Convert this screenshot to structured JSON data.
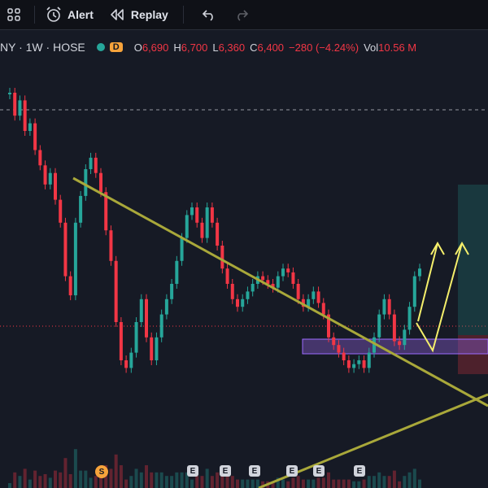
{
  "toolbar": {
    "alert_label": "Alert",
    "replay_label": "Replay"
  },
  "legend": {
    "symbol": "NY · 1W · HOSE",
    "badge_letter": "D",
    "open_key": "O",
    "open": "6,690",
    "high_key": "H",
    "high": "6,700",
    "low_key": "L",
    "low": "6,360",
    "close_key": "C",
    "close": "6,400",
    "change": "−280 (−4.24%)",
    "vol_key": "Vol",
    "vol": "10.56 M"
  },
  "markers": {
    "s": "S",
    "e": [
      "E",
      "E",
      "E",
      "E",
      "E",
      "E"
    ]
  },
  "colors": {
    "bull": "#26a69a",
    "bear": "#f23645",
    "trendline": "#a9a83a",
    "arrow": "#f5ef6b",
    "zone": "#7e57c2",
    "background": "#161a25"
  },
  "chart_data": {
    "type": "candlestick",
    "price_levels": {
      "open": 6690,
      "high": 6700,
      "low": 6360,
      "close": 6400
    },
    "series": [
      {
        "values": [
          9,
          8.4,
          8.8,
          8,
          8.2,
          7.5,
          7.1,
          6.6,
          6.9,
          6.2,
          5.6,
          4.2,
          3.7,
          5.6,
          6.3,
          7.0,
          7.3,
          6.9,
          6.4,
          5.4,
          4.6,
          3.0,
          2.0,
          1.8,
          2.2,
          3.0,
          3.6,
          2.6,
          2.0,
          2.6,
          3.2,
          3.6,
          4.0,
          4.6,
          5.2,
          5.8,
          6.0,
          5.6,
          5.2,
          6.0,
          5.6,
          5.0,
          4.4,
          4.0,
          3.6,
          3.4,
          3.6,
          3.8,
          4.0,
          4.2,
          4.1,
          4.0,
          3.9,
          4.2,
          4.4,
          4.3,
          4.0,
          3.6,
          3.4,
          3.6,
          3.8,
          3.5,
          3.2,
          2.6,
          2.4,
          2.2,
          2.0,
          1.8,
          1.9,
          2.0,
          1.8,
          2.2,
          2.6,
          3.2,
          3.6,
          3.2,
          2.5,
          2.4,
          2.8,
          3.4,
          4.2,
          4.4
        ]
      }
    ]
  }
}
